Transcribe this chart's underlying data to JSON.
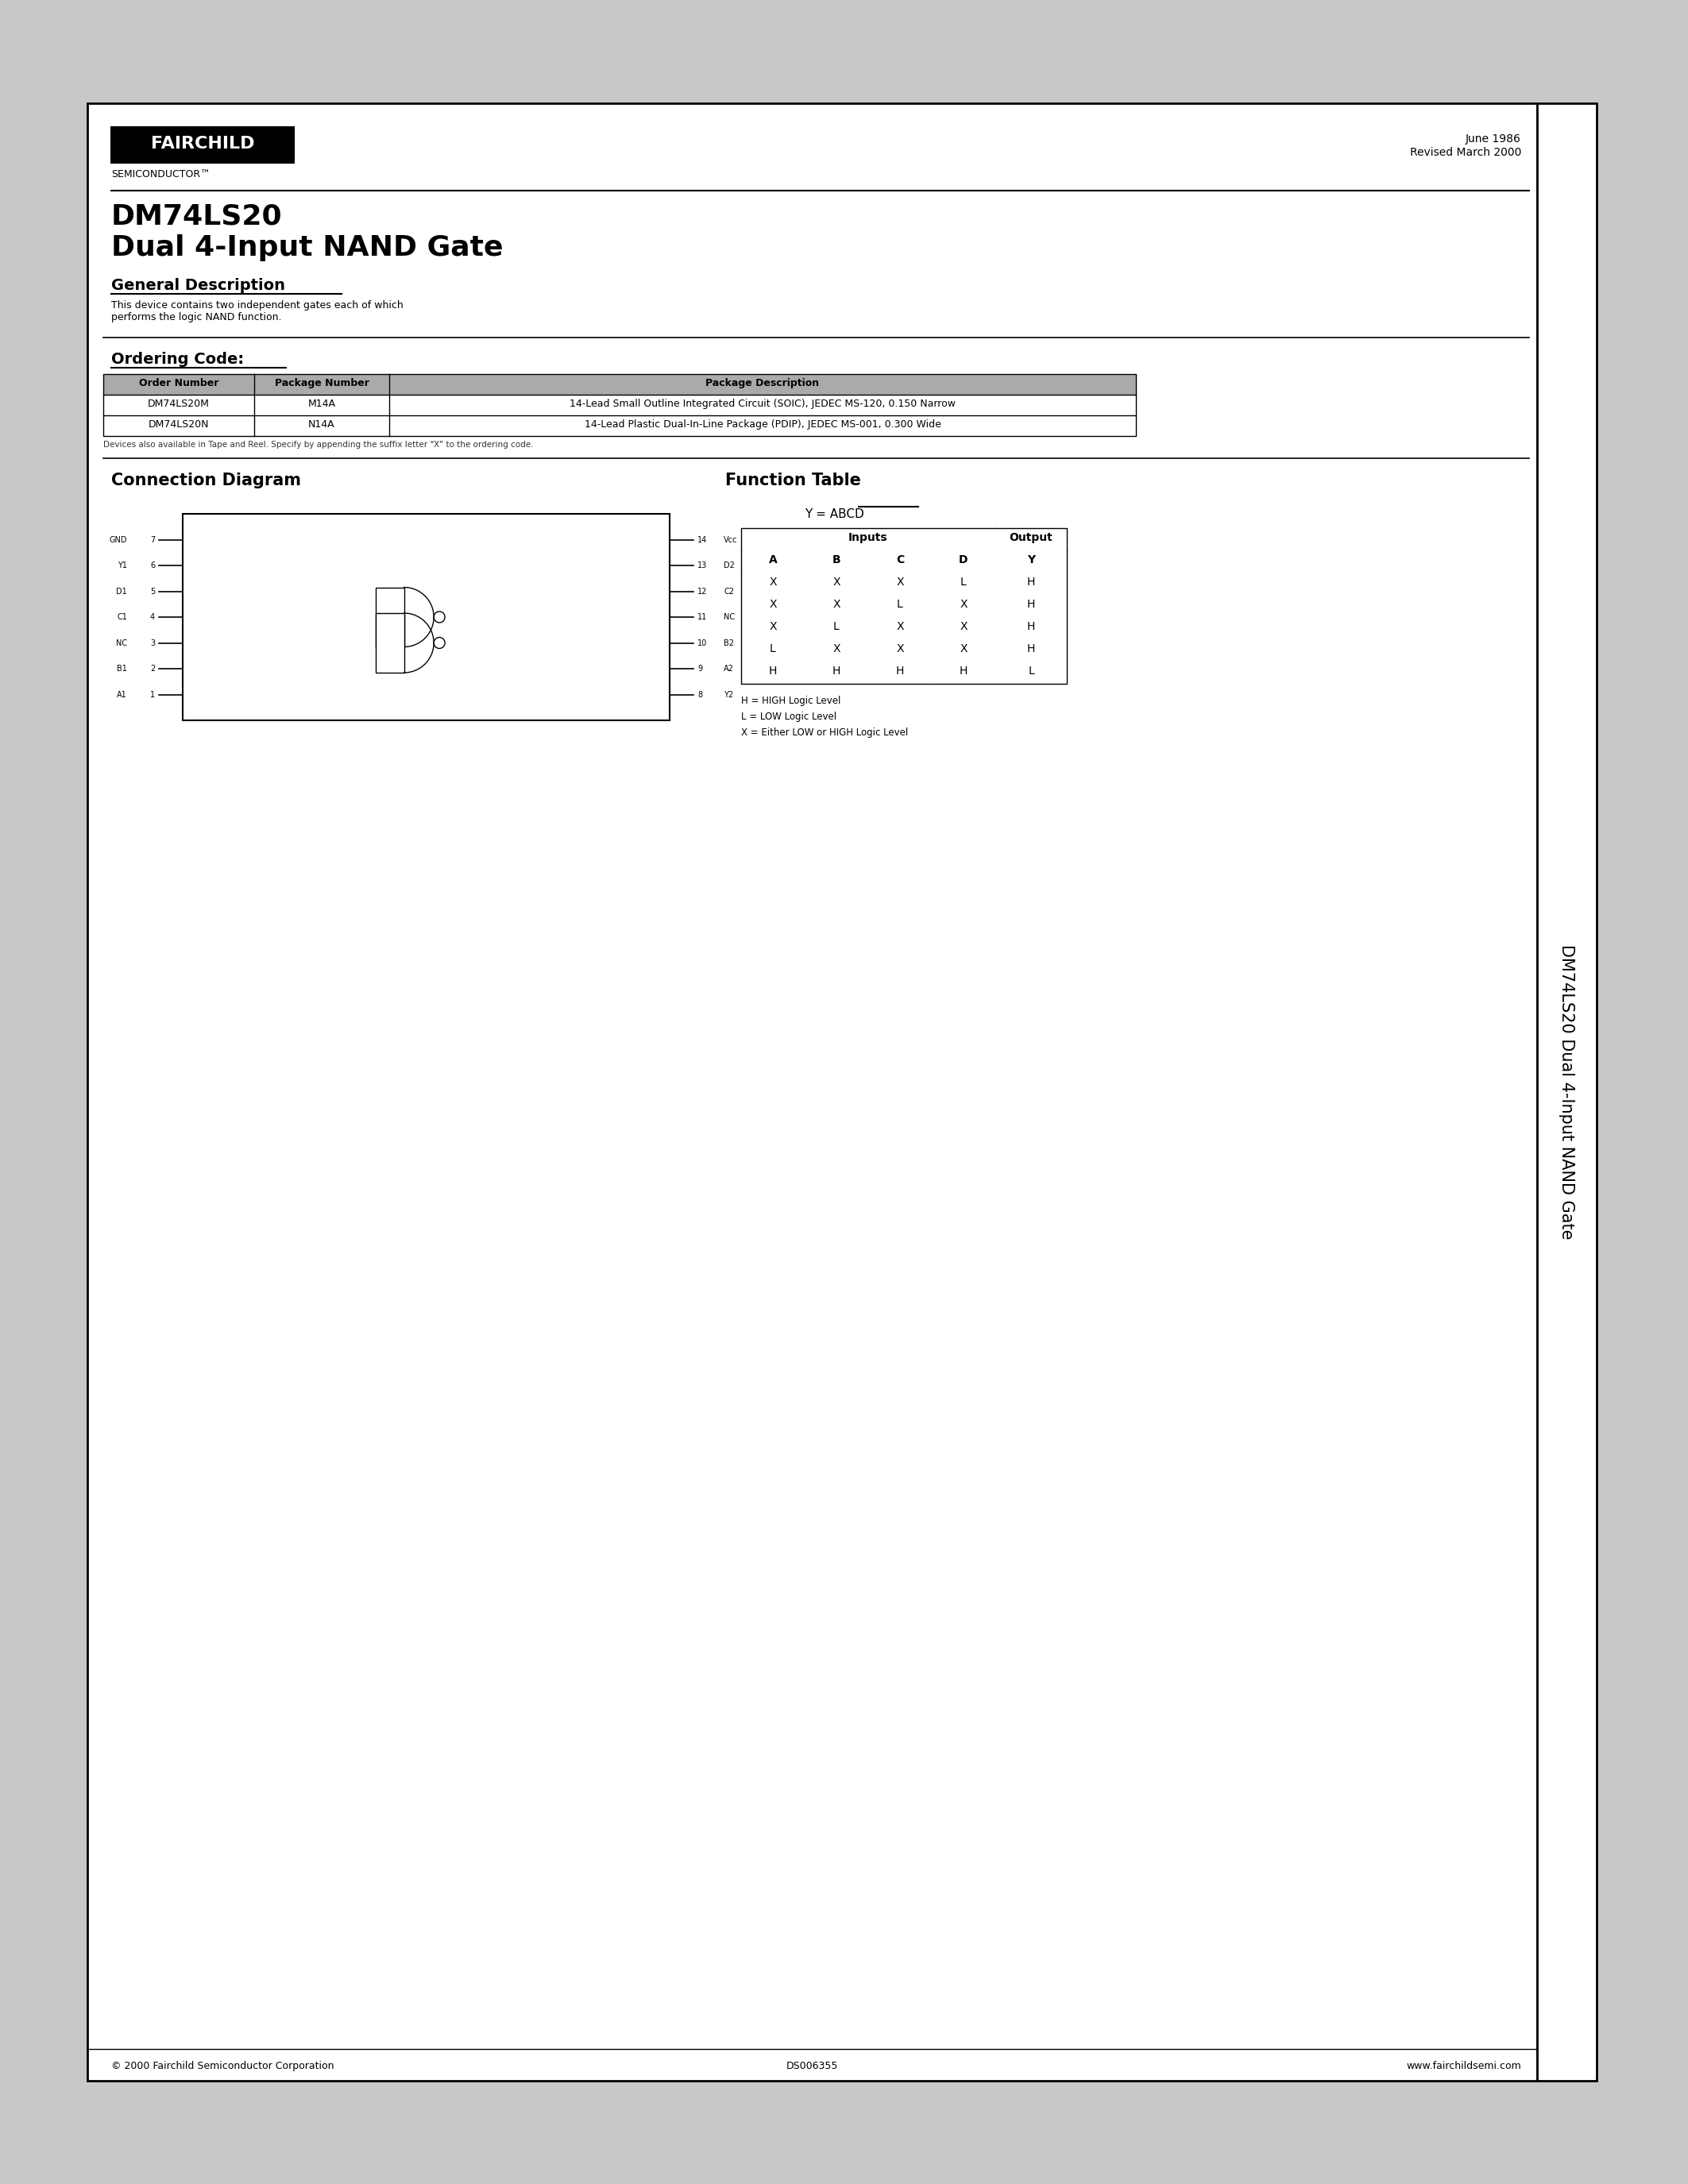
{
  "page_bg": "#ffffff",
  "outer_bg": "#c8c8c8",
  "logo_text": "FAIRCHILD",
  "semiconductor_text": "SEMICONDUCTOR™",
  "date_text": "June 1986",
  "revised_text": "Revised March 2000",
  "part_number": "DM74LS20",
  "part_title": "Dual 4-Input NAND Gate",
  "gen_desc_title": "General Description",
  "gen_desc_body": "This device contains two independent gates each of which\nperforms the logic NAND function.",
  "ordering_code_title": "Ordering Code:",
  "ordering_table_headers": [
    "Order Number",
    "Package Number",
    "Package Description"
  ],
  "ordering_table_rows": [
    [
      "DM74LS20M",
      "M14A",
      "14-Lead Small Outline Integrated Circuit (SOIC), JEDEC MS-120, 0.150 Narrow"
    ],
    [
      "DM74LS20N",
      "N14A",
      "14-Lead Plastic Dual-In-Line Package (PDIP), JEDEC MS-001, 0.300 Wide"
    ]
  ],
  "ordering_note": "Devices also available in Tape and Reel. Specify by appending the suffix letter “X” to the ordering code.",
  "conn_diag_title": "Connection Diagram",
  "func_table_title": "Function Table",
  "func_table_headers": [
    "A",
    "B",
    "C",
    "D",
    "Y"
  ],
  "func_table_inputs_header": "Inputs",
  "func_table_output_header": "Output",
  "func_table_rows": [
    [
      "X",
      "X",
      "X",
      "L",
      "H"
    ],
    [
      "X",
      "X",
      "L",
      "X",
      "H"
    ],
    [
      "X",
      "L",
      "X",
      "X",
      "H"
    ],
    [
      "L",
      "X",
      "X",
      "X",
      "H"
    ],
    [
      "H",
      "H",
      "H",
      "H",
      "L"
    ]
  ],
  "func_legend": [
    "H = HIGH Logic Level",
    "L = LOW Logic Level",
    "X = Either LOW or HIGH Logic Level"
  ],
  "sidebar_text": "DM74LS20 Dual 4-Input NAND Gate",
  "footer_copyright": "© 2000 Fairchild Semiconductor Corporation",
  "footer_ds": "DS006355",
  "footer_web": "www.fairchildsemi.com",
  "pin_labels_top": [
    "Vcc",
    "D2",
    "C2",
    "NC",
    "B2",
    "A2",
    "Y2"
  ],
  "pin_numbers_top": [
    "14",
    "13",
    "12",
    "11",
    "10",
    "9",
    "8"
  ],
  "pin_labels_bot": [
    "A1",
    "B1",
    "NC",
    "C1",
    "D1",
    "Y1",
    "GND"
  ],
  "pin_numbers_bot": [
    "1",
    "2",
    "3",
    "4",
    "5",
    "6",
    "7"
  ]
}
